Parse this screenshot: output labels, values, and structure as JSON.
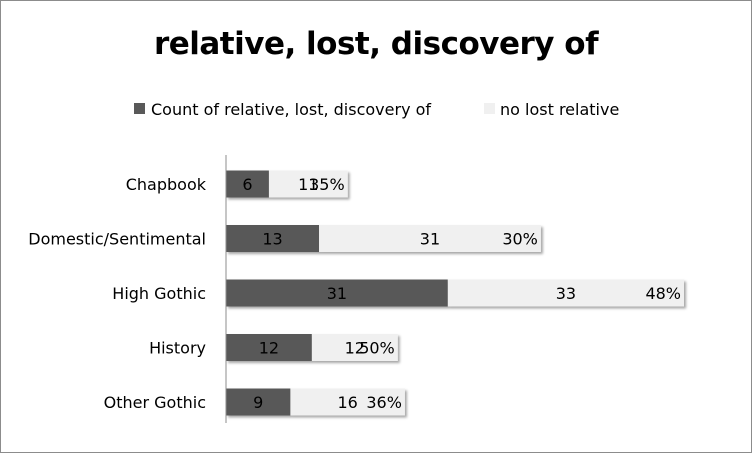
{
  "chart_data": {
    "type": "bar",
    "orientation": "horizontal",
    "stacked": true,
    "title": "relative, lost, discovery of",
    "categories": [
      "Chapbook",
      "Domestic/Sentimental",
      "High Gothic",
      "History",
      "Other Gothic"
    ],
    "series": [
      {
        "name": "Count of relative, lost, discovery of",
        "values": [
          6,
          13,
          31,
          12,
          9
        ],
        "color": "#595959"
      },
      {
        "name": "no lost relative",
        "values": [
          11,
          31,
          33,
          12,
          16
        ],
        "color": "#f0f0f0"
      }
    ],
    "percent_labels": [
      "35%",
      "30%",
      "48%",
      "50%",
      "36%"
    ],
    "xlim": [
      0,
      64
    ],
    "grid": false,
    "legend_position": "top",
    "xlabel": "",
    "ylabel": ""
  }
}
